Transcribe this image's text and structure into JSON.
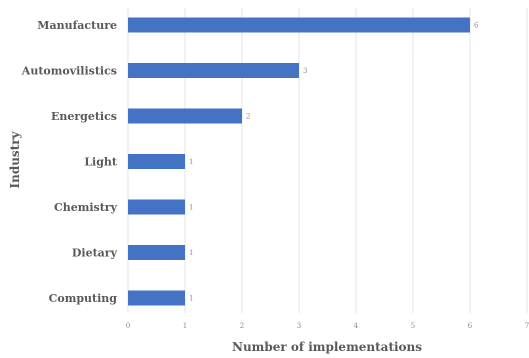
{
  "chart_data": {
    "type": "bar",
    "orientation": "horizontal",
    "categories": [
      "Manufacture",
      "Automovilistics",
      "Energetics",
      "Light",
      "Chemistry",
      "Dietary",
      "Computing"
    ],
    "values": [
      6,
      3,
      2,
      1,
      1,
      1,
      1
    ],
    "xlabel": "Number of implementations",
    "ylabel": "Industry",
    "xlim": [
      0,
      7
    ],
    "xticks": [
      "0",
      "1",
      "2",
      "3",
      "4",
      "5",
      "6",
      "7"
    ],
    "grid": "vertical",
    "bar_color": "#4472c4",
    "show_data_labels": true
  }
}
